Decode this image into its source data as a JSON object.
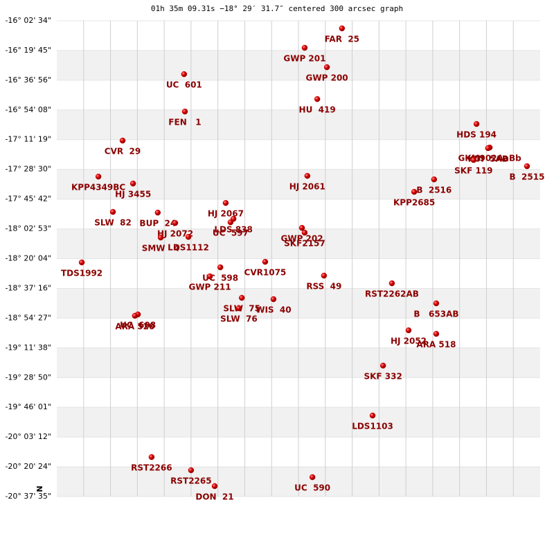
{
  "chart_data": {
    "type": "scatter",
    "title": "01h 35m 09.31s −18° 29′ 31.7″ centered 300 arcsec graph",
    "north_label": "N",
    "color": "#cc0000",
    "label_color": "#8b0000",
    "grid": true,
    "xlim": [
      0,
      18
    ],
    "xticks": [
      1,
      2,
      3,
      4,
      5,
      6,
      7,
      8,
      9,
      10,
      11,
      12,
      13,
      14,
      15,
      16,
      17
    ],
    "ylim": [
      -20.6264,
      -16.0428
    ],
    "yticks": [
      {
        "value": -16.0428,
        "label": "-16° 02' 34\""
      },
      {
        "value": -16.3292,
        "label": "-16° 19' 45\""
      },
      {
        "value": -16.6156,
        "label": "-16° 36' 56\""
      },
      {
        "value": -16.9022,
        "label": "-16° 54' 08\""
      },
      {
        "value": -17.1886,
        "label": "-17° 11' 19\""
      },
      {
        "value": -17.475,
        "label": "-17° 28' 30\""
      },
      {
        "value": -17.7617,
        "label": "-17° 45' 42\""
      },
      {
        "value": -18.0481,
        "label": "-18° 02' 53\""
      },
      {
        "value": -18.3344,
        "label": "-18° 20' 04\""
      },
      {
        "value": -18.6211,
        "label": "-18° 37' 16\""
      },
      {
        "value": -18.9075,
        "label": "-18° 54' 27\""
      },
      {
        "value": -19.1939,
        "label": "-19° 11' 38\""
      },
      {
        "value": -19.4806,
        "label": "-19° 28' 50\""
      },
      {
        "value": -19.7669,
        "label": "-19° 46' 01\""
      },
      {
        "value": -20.0533,
        "label": "-20° 03' 12\""
      },
      {
        "value": -20.34,
        "label": "-20° 20' 24\""
      },
      {
        "value": -20.6264,
        "label": "-20° 37' 35\""
      }
    ],
    "point_labels": [
      "FAR  25",
      "GWP 201",
      "GWP 200",
      "UC  601",
      "HU  419",
      "FEN   1",
      "HDS 194",
      "CVR  29",
      "GKM902AaBb",
      "KUI  5AB",
      "SKF 119",
      "B  2515",
      "KPP4349BC",
      "HJ 2061",
      "B  2516",
      "HJ 3455",
      "KPP2685",
      "HJ 2067",
      "SLW  82",
      "BUP  24",
      "LDS 838",
      "UC  597",
      "HJ 2072",
      "GWP 202",
      "SKF2157",
      "LDS1112",
      "SMW   4",
      "TDS1992",
      "CVR1075",
      "UC  598",
      "RSS  49",
      "GWP 211",
      "RST2262AB",
      "SLW  75",
      "WIS  40",
      "B   653AB",
      "SLW  76",
      "UC  608",
      "ARA 520",
      "HJ 2052",
      "ARA 518",
      "SKF 332",
      "LDS1103",
      "RST2266",
      "RST2265",
      "UC  590",
      "DON  21"
    ],
    "x": [
      10.62,
      9.23,
      10.06,
      4.74,
      9.7,
      4.77,
      15.63,
      2.45,
      16.12,
      16.06,
      15.52,
      17.51,
      1.55,
      9.33,
      14.05,
      2.84,
      13.31,
      6.29,
      2.09,
      3.76,
      6.58,
      6.47,
      4.41,
      9.13,
      9.23,
      4.9,
      3.87,
      0.93,
      7.76,
      6.09,
      9.95,
      5.7,
      12.48,
      6.89,
      8.07,
      14.13,
      6.78,
      3.02,
      2.91,
      13.1,
      14.13,
      12.15,
      11.76,
      3.53,
      5.0,
      9.52,
      5.88
    ],
    "values": [
      -16.116,
      -16.303,
      -16.49,
      -16.557,
      -16.797,
      -16.917,
      -17.037,
      -17.197,
      -17.264,
      -17.27,
      -17.384,
      -17.444,
      -17.544,
      -17.537,
      -17.571,
      -17.611,
      -17.691,
      -17.798,
      -17.884,
      -17.891,
      -17.951,
      -17.984,
      -17.991,
      -18.038,
      -18.084,
      -18.125,
      -18.131,
      -18.371,
      -18.365,
      -18.418,
      -18.498,
      -18.505,
      -18.572,
      -18.712,
      -18.725,
      -18.765,
      -18.812,
      -18.872,
      -18.885,
      -19.025,
      -19.059,
      -19.365,
      -19.846,
      -20.246,
      -20.373,
      -20.44,
      -20.526
    ]
  }
}
